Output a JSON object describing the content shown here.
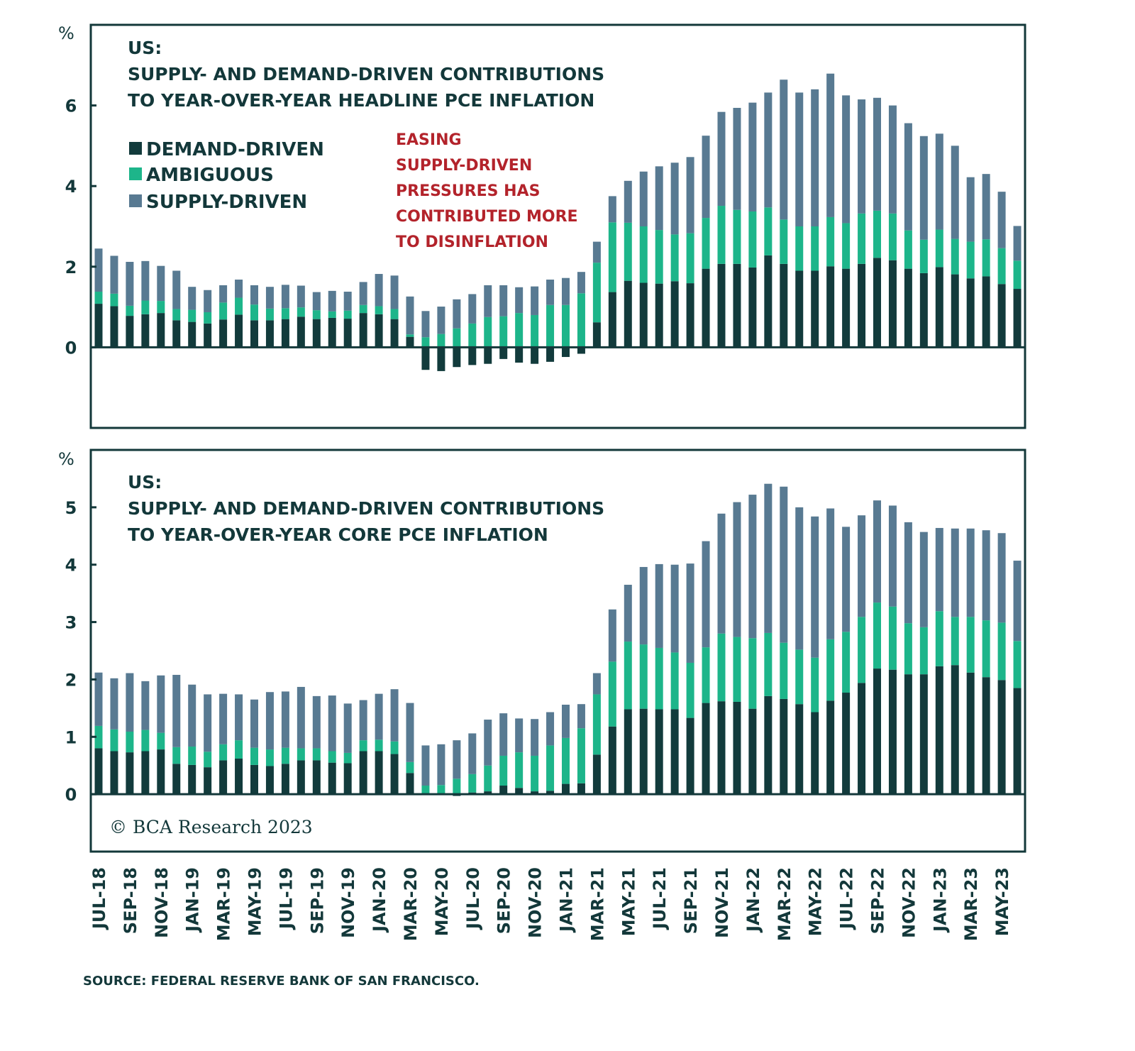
{
  "colors": {
    "demand": "#123b3c",
    "ambiguous": "#1db58a",
    "supply": "#587a92",
    "frame": "#13383a",
    "annotation": "#b3232b"
  },
  "legend": [
    {
      "key": "demand",
      "label": "DEMAND-DRIVEN"
    },
    {
      "key": "ambiguous",
      "label": "AMBIGUOUS"
    },
    {
      "key": "supply",
      "label": "SUPPLY-DRIVEN"
    }
  ],
  "annotation": [
    "EASING",
    "SUPPLY-DRIVEN",
    "PRESSURES HAS",
    "CONTRIBUTED MORE",
    "TO DISINFLATION"
  ],
  "copyright": "© BCA Research 2023",
  "source": "SOURCE: FEDERAL RESERVE BANK OF SAN FRANCISCO.",
  "x_tick_labels": [
    "JUL-18",
    "SEP-18",
    "NOV-18",
    "JAN-19",
    "MAR-19",
    "MAY-19",
    "JUL-19",
    "SEP-19",
    "NOV-19",
    "JAN-20",
    "MAR-20",
    "MAY-20",
    "JUL-20",
    "SEP-20",
    "NOV-20",
    "JAN-21",
    "MAR-21",
    "MAY-21",
    "JUL-21",
    "SEP-21",
    "NOV-21",
    "JAN-22",
    "MAR-22",
    "MAY-22",
    "JUL-22",
    "SEP-22",
    "NOV-22",
    "JAN-23",
    "MAR-23",
    "MAY-23"
  ],
  "chart_data": [
    {
      "type": "bar",
      "stacked": true,
      "title": "US: SUPPLY- AND DEMAND-DRIVEN CONTRIBUTIONS TO YEAR-OVER-YEAR HEADLINE PCE INFLATION",
      "title_lines": [
        "US:",
        "SUPPLY- AND DEMAND-DRIVEN CONTRIBUTIONS",
        "TO YEAR-OVER-YEAR HEADLINE PCE INFLATION"
      ],
      "ylabel": "%",
      "ylim": [
        -2,
        8
      ],
      "yticks": [
        0,
        2,
        4,
        6
      ],
      "grid": false,
      "legend_position": "top-left",
      "x": [
        "Jul-18",
        "Aug-18",
        "Sep-18",
        "Oct-18",
        "Nov-18",
        "Dec-18",
        "Jan-19",
        "Feb-19",
        "Mar-19",
        "Apr-19",
        "May-19",
        "Jun-19",
        "Jul-19",
        "Aug-19",
        "Sep-19",
        "Oct-19",
        "Nov-19",
        "Dec-19",
        "Jan-20",
        "Feb-20",
        "Mar-20",
        "Apr-20",
        "May-20",
        "Jun-20",
        "Jul-20",
        "Aug-20",
        "Sep-20",
        "Oct-20",
        "Nov-20",
        "Dec-20",
        "Jan-21",
        "Feb-21",
        "Mar-21",
        "Apr-21",
        "May-21",
        "Jun-21",
        "Jul-21",
        "Aug-21",
        "Sep-21",
        "Oct-21",
        "Nov-21",
        "Dec-21",
        "Jan-22",
        "Feb-22",
        "Mar-22",
        "Apr-22",
        "May-22",
        "Jun-22",
        "Jul-22",
        "Aug-22",
        "Sep-22",
        "Oct-22",
        "Nov-22",
        "Dec-22",
        "Jan-23",
        "Feb-23",
        "Mar-23",
        "Apr-23",
        "May-23",
        "Jun-23"
      ],
      "series": [
        {
          "name": "DEMAND-DRIVEN",
          "key": "demand",
          "values": [
            1.08,
            1.02,
            0.78,
            0.82,
            0.85,
            0.67,
            0.63,
            0.59,
            0.69,
            0.81,
            0.67,
            0.67,
            0.7,
            0.76,
            0.7,
            0.73,
            0.71,
            0.85,
            0.82,
            0.7,
            0.26,
            -0.56,
            -0.59,
            -0.49,
            -0.44,
            -0.41,
            -0.29,
            -0.38,
            -0.41,
            -0.36,
            -0.24,
            -0.16,
            0.62,
            1.37,
            1.65,
            1.6,
            1.58,
            1.64,
            1.59,
            1.95,
            2.07,
            2.07,
            1.98,
            2.28,
            2.07,
            1.9,
            1.9,
            2.01,
            1.95,
            2.07,
            2.22,
            2.16,
            1.95,
            1.84,
            1.99,
            1.81,
            1.71,
            1.76,
            1.57,
            1.45
          ]
        },
        {
          "name": "AMBIGUOUS",
          "key": "ambiguous",
          "values": [
            0.3,
            0.31,
            0.25,
            0.34,
            0.3,
            0.28,
            0.3,
            0.28,
            0.42,
            0.42,
            0.39,
            0.29,
            0.27,
            0.23,
            0.22,
            0.16,
            0.2,
            0.2,
            0.2,
            0.25,
            0.06,
            0.25,
            0.33,
            0.47,
            0.59,
            0.75,
            0.77,
            0.85,
            0.8,
            1.05,
            1.05,
            1.34,
            1.48,
            1.73,
            1.44,
            1.4,
            1.33,
            1.16,
            1.24,
            1.26,
            1.44,
            1.34,
            1.39,
            1.19,
            1.1,
            1.1,
            1.1,
            1.22,
            1.13,
            1.25,
            1.17,
            1.16,
            0.95,
            0.83,
            0.93,
            0.88,
            0.91,
            0.92,
            0.89,
            0.7
          ]
        },
        {
          "name": "SUPPLY-DRIVEN",
          "key": "supply",
          "values": [
            1.07,
            0.94,
            1.09,
            0.98,
            0.87,
            0.95,
            0.57,
            0.55,
            0.43,
            0.45,
            0.48,
            0.54,
            0.58,
            0.54,
            0.45,
            0.51,
            0.47,
            0.57,
            0.8,
            0.83,
            0.94,
            0.65,
            0.68,
            0.72,
            0.73,
            0.79,
            0.77,
            0.64,
            0.71,
            0.63,
            0.67,
            0.53,
            0.52,
            0.65,
            1.04,
            1.36,
            1.58,
            1.78,
            1.89,
            2.04,
            2.33,
            2.53,
            2.7,
            2.85,
            3.47,
            3.32,
            3.4,
            3.56,
            3.17,
            2.83,
            2.8,
            2.68,
            2.66,
            2.57,
            2.38,
            2.31,
            1.6,
            1.62,
            1.4,
            0.86
          ]
        }
      ]
    },
    {
      "type": "bar",
      "stacked": true,
      "title": "US: SUPPLY- AND DEMAND-DRIVEN CONTRIBUTIONS TO YEAR-OVER-YEAR CORE PCE INFLATION",
      "title_lines": [
        "US:",
        "SUPPLY- AND DEMAND-DRIVEN CONTRIBUTIONS",
        "TO YEAR-OVER-YEAR CORE PCE INFLATION"
      ],
      "ylabel": "%",
      "ylim": [
        -1,
        6
      ],
      "yticks": [
        0,
        1,
        2,
        3,
        4,
        5
      ],
      "grid": false,
      "x": [
        "Jul-18",
        "Aug-18",
        "Sep-18",
        "Oct-18",
        "Nov-18",
        "Dec-18",
        "Jan-19",
        "Feb-19",
        "Mar-19",
        "Apr-19",
        "May-19",
        "Jun-19",
        "Jul-19",
        "Aug-19",
        "Sep-19",
        "Oct-19",
        "Nov-19",
        "Dec-19",
        "Jan-20",
        "Feb-20",
        "Mar-20",
        "Apr-20",
        "May-20",
        "Jun-20",
        "Jul-20",
        "Aug-20",
        "Sep-20",
        "Oct-20",
        "Nov-20",
        "Dec-20",
        "Jan-21",
        "Feb-21",
        "Mar-21",
        "Apr-21",
        "May-21",
        "Jun-21",
        "Jul-21",
        "Aug-21",
        "Sep-21",
        "Oct-21",
        "Nov-21",
        "Dec-21",
        "Jan-22",
        "Feb-22",
        "Mar-22",
        "Apr-22",
        "May-22",
        "Jun-22",
        "Jul-22",
        "Aug-22",
        "Sep-22",
        "Oct-22",
        "Nov-22",
        "Dec-22",
        "Jan-23",
        "Feb-23",
        "Mar-23",
        "Apr-23",
        "May-23",
        "Jun-23"
      ],
      "series": [
        {
          "name": "DEMAND-DRIVEN",
          "key": "demand",
          "values": [
            0.8,
            0.75,
            0.73,
            0.75,
            0.78,
            0.53,
            0.51,
            0.47,
            0.59,
            0.62,
            0.51,
            0.49,
            0.53,
            0.59,
            0.59,
            0.55,
            0.54,
            0.75,
            0.75,
            0.7,
            0.37,
            0.0,
            0.0,
            -0.03,
            0.03,
            0.05,
            0.15,
            0.11,
            0.05,
            0.06,
            0.18,
            0.19,
            0.69,
            1.18,
            1.48,
            1.49,
            1.48,
            1.48,
            1.33,
            1.59,
            1.62,
            1.61,
            1.49,
            1.71,
            1.66,
            1.57,
            1.43,
            1.63,
            1.77,
            1.94,
            2.19,
            2.17,
            2.09,
            2.09,
            2.23,
            2.25,
            2.12,
            2.04,
            1.99,
            1.85
          ]
        },
        {
          "name": "AMBIGUOUS",
          "key": "ambiguous",
          "values": [
            0.39,
            0.38,
            0.36,
            0.37,
            0.29,
            0.29,
            0.32,
            0.27,
            0.28,
            0.32,
            0.3,
            0.29,
            0.28,
            0.21,
            0.21,
            0.2,
            0.18,
            0.19,
            0.2,
            0.22,
            0.19,
            0.15,
            0.16,
            0.27,
            0.32,
            0.45,
            0.52,
            0.62,
            0.62,
            0.79,
            0.8,
            0.96,
            1.05,
            1.13,
            1.18,
            1.12,
            1.07,
            0.99,
            0.96,
            0.97,
            1.18,
            1.13,
            1.23,
            1.1,
            0.98,
            0.95,
            0.95,
            1.07,
            1.06,
            1.15,
            1.15,
            1.1,
            0.89,
            0.82,
            0.96,
            0.84,
            0.97,
            0.99,
            1.0,
            0.82
          ]
        },
        {
          "name": "SUPPLY-DRIVEN",
          "key": "supply",
          "values": [
            0.93,
            0.89,
            1.02,
            0.85,
            1.0,
            1.26,
            1.08,
            1.0,
            0.88,
            0.8,
            0.84,
            1.0,
            0.98,
            1.07,
            0.91,
            0.97,
            0.86,
            0.7,
            0.8,
            0.91,
            1.03,
            0.7,
            0.71,
            0.67,
            0.71,
            0.8,
            0.74,
            0.59,
            0.64,
            0.58,
            0.58,
            0.42,
            0.37,
            0.91,
            0.99,
            1.35,
            1.46,
            1.53,
            1.73,
            1.85,
            2.09,
            2.35,
            2.5,
            2.6,
            2.72,
            2.48,
            2.46,
            2.28,
            1.83,
            1.77,
            1.78,
            1.76,
            1.76,
            1.66,
            1.45,
            1.54,
            1.54,
            1.57,
            1.56,
            1.4
          ]
        }
      ]
    }
  ]
}
